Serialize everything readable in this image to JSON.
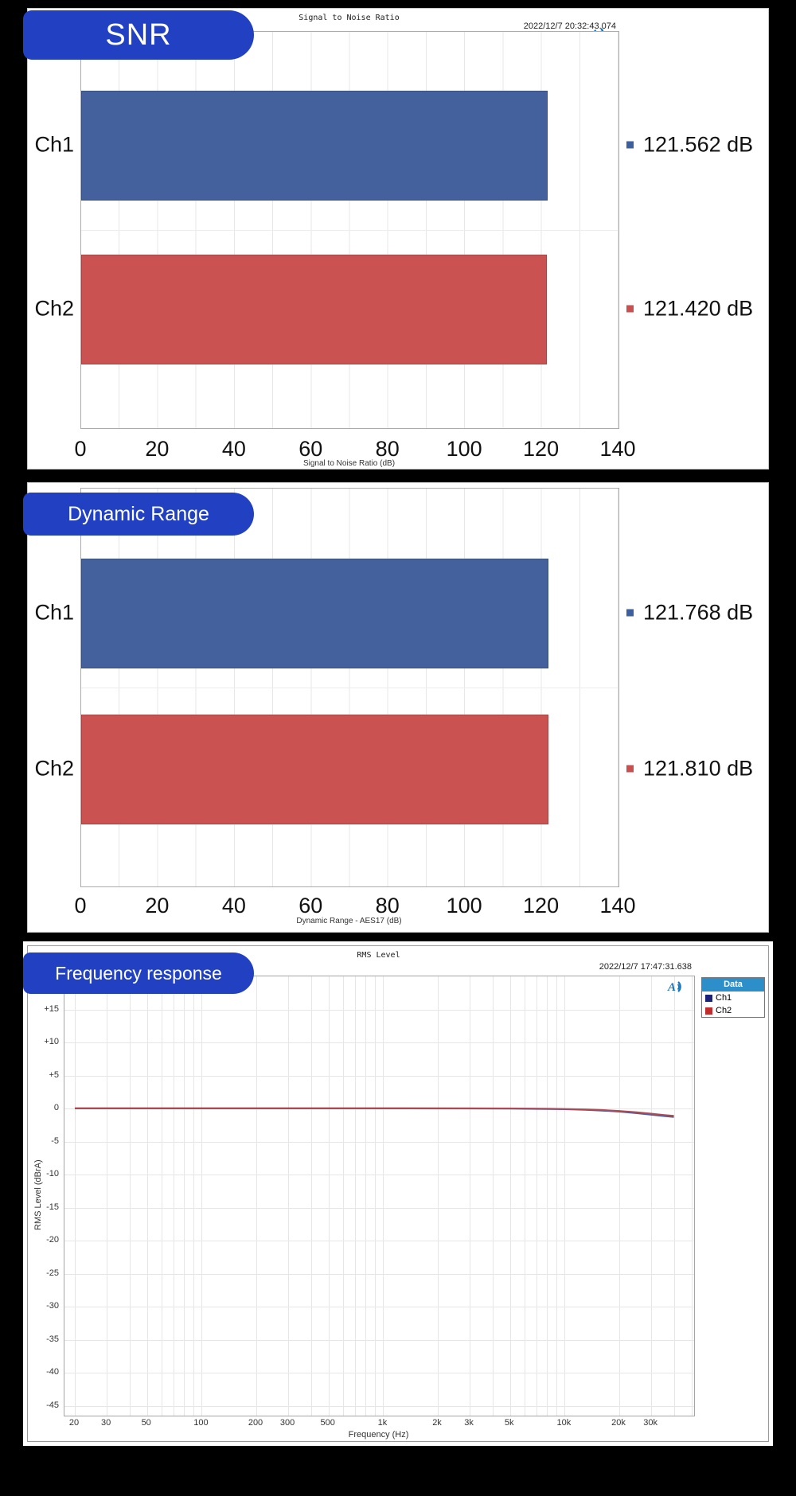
{
  "app": {
    "background": "#000000",
    "accent_pill_color": "#2240C2",
    "logo_name": "audio-precision-logo"
  },
  "chart_data": [
    {
      "type": "bar",
      "badge": "SNR",
      "title": "Signal to Noise Ratio",
      "timestamp": "2022/12/7 20:32:43.074",
      "orientation": "horizontal",
      "categories": [
        "Ch1",
        "Ch2"
      ],
      "values": [
        121.562,
        121.42
      ],
      "value_labels": [
        "121.562 dB",
        "121.420 dB"
      ],
      "xlabel": "Signal to Noise Ratio (dB)",
      "xlim": [
        0,
        140
      ],
      "xticks": [
        0,
        20,
        40,
        60,
        80,
        100,
        120,
        140
      ],
      "grid": "vertical minor every 10 dB",
      "bar_colors": [
        "#45619D",
        "#CA5351"
      ]
    },
    {
      "type": "bar",
      "badge": "Dynamic Range",
      "orientation": "horizontal",
      "categories": [
        "Ch1",
        "Ch2"
      ],
      "values": [
        121.768,
        121.81
      ],
      "value_labels": [
        "121.768 dB",
        "121.810 dB"
      ],
      "xlabel": "Dynamic Range - AES17 (dB)",
      "xlim": [
        0,
        140
      ],
      "xticks": [
        0,
        20,
        40,
        60,
        80,
        100,
        120,
        140
      ],
      "grid": "vertical minor every 10 dB",
      "bar_colors": [
        "#45619D",
        "#CA5351"
      ]
    },
    {
      "type": "line",
      "badge": "Frequency response",
      "title": "RMS Level",
      "timestamp": "2022/12/7 17:47:31.638",
      "xlabel": "Frequency (Hz)",
      "ylabel": "RMS Level (dBrA)",
      "xscale": "log",
      "xlim": [
        20,
        50000
      ],
      "ylim": [
        -47.5,
        20
      ],
      "xticks": [
        20,
        30,
        50,
        100,
        200,
        300,
        500,
        1000,
        2000,
        3000,
        5000,
        10000,
        20000,
        30000
      ],
      "xtick_labels": [
        "20",
        "30",
        "50",
        "100",
        "200",
        "300",
        "500",
        "1k",
        "2k",
        "3k",
        "5k",
        "10k",
        "20k",
        "30k"
      ],
      "yticks": [
        15,
        10,
        5,
        0,
        -5,
        -10,
        -15,
        -20,
        -25,
        -30,
        -35,
        -40,
        -45
      ],
      "ytick_labels": [
        "+15",
        "+10",
        "+5",
        "0",
        "-5",
        "-10",
        "-15",
        "-20",
        "-25",
        "-30",
        "-35",
        "-40",
        "-45"
      ],
      "legend": {
        "header": "Data",
        "position": "top-right",
        "entries": [
          {
            "label": "Ch1",
            "color": "#1A2377"
          },
          {
            "label": "Ch2",
            "color": "#C02B2B"
          }
        ]
      },
      "series": [
        {
          "name": "Ch1",
          "color": "#4A5FA5",
          "points": [
            [
              20,
              0
            ],
            [
              50,
              0
            ],
            [
              100,
              0
            ],
            [
              300,
              0
            ],
            [
              1000,
              0
            ],
            [
              3000,
              -0.01
            ],
            [
              5000,
              -0.03
            ],
            [
              8000,
              -0.08
            ],
            [
              10000,
              -0.12
            ],
            [
              13000,
              -0.2
            ],
            [
              16000,
              -0.32
            ],
            [
              20000,
              -0.48
            ],
            [
              25000,
              -0.72
            ],
            [
              30000,
              -0.95
            ],
            [
              35000,
              -1.15
            ],
            [
              40000,
              -1.3
            ]
          ]
        },
        {
          "name": "Ch2",
          "color": "#B04A52",
          "points": [
            [
              20,
              0.05
            ],
            [
              50,
              0.05
            ],
            [
              100,
              0.05
            ],
            [
              300,
              0.05
            ],
            [
              1000,
              0.05
            ],
            [
              3000,
              0.03
            ],
            [
              5000,
              0.01
            ],
            [
              8000,
              -0.03
            ],
            [
              10000,
              -0.07
            ],
            [
              13000,
              -0.13
            ],
            [
              16000,
              -0.23
            ],
            [
              20000,
              -0.37
            ],
            [
              25000,
              -0.58
            ],
            [
              30000,
              -0.78
            ],
            [
              35000,
              -0.98
            ],
            [
              40000,
              -1.12
            ]
          ]
        }
      ]
    }
  ]
}
